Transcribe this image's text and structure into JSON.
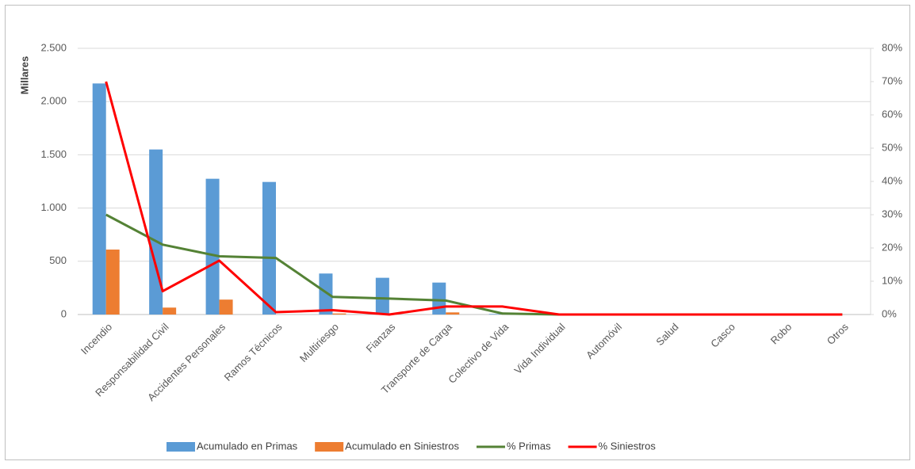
{
  "chart_data": {
    "type": "bar_line",
    "y_label": "Millares",
    "categories": [
      "Incendio",
      "Responsabilidad Civil",
      "Accidentes Personales",
      "Ramos Técnicos",
      "Multiriesgo",
      "Fianzas",
      "Transporte de Carga",
      "Colectivo de Vida",
      "Vida Individual",
      "Automóvil",
      "Salud",
      "Casco",
      "Robo",
      "Otros"
    ],
    "series": [
      {
        "name": "Acumulado en Primas",
        "color": "#5b9bd5",
        "kind": "bar",
        "values": [
          2170,
          1550,
          1275,
          1245,
          385,
          345,
          300,
          5,
          0,
          0,
          0,
          0,
          0,
          0
        ]
      },
      {
        "name": "Acumulado en Siniestros",
        "color": "#ed7d31",
        "kind": "bar",
        "values": [
          610,
          65,
          140,
          0,
          10,
          0,
          20,
          0,
          0,
          0,
          0,
          0,
          0,
          0
        ]
      },
      {
        "name": "% Primas",
        "color": "#548235",
        "kind": "line",
        "axis": "y2",
        "values": [
          30,
          21,
          17.5,
          17,
          5.3,
          4.8,
          4.2,
          0.3,
          0,
          0,
          0,
          0,
          0,
          0
        ]
      },
      {
        "name": "% Siniestros",
        "color": "#ff0000",
        "kind": "line",
        "axis": "y2",
        "values": [
          70,
          7,
          16.2,
          0.7,
          1.3,
          0,
          2.4,
          2.4,
          0,
          0,
          0,
          0,
          0,
          0
        ]
      }
    ],
    "ylim": [
      0,
      2500
    ],
    "yticks": [
      0,
      500,
      {
        "value": 1000,
        "label": "1.000"
      },
      {
        "value": 1500,
        "label": "1.500"
      },
      {
        "value": 2000,
        "label": "2.000"
      },
      {
        "value": 2500,
        "label": "2.500"
      }
    ],
    "y2lim": [
      0,
      80
    ],
    "y2ticks": [
      {
        "value": 0,
        "label": "0%"
      },
      {
        "value": 10,
        "label": "10%"
      },
      {
        "value": 20,
        "label": "20%"
      },
      {
        "value": 30,
        "label": "30%"
      },
      {
        "value": 40,
        "label": "40%"
      },
      {
        "value": 50,
        "label": "50%"
      },
      {
        "value": 60,
        "label": "60%"
      },
      {
        "value": 70,
        "label": "70%"
      },
      {
        "value": 80,
        "label": "80%"
      }
    ],
    "grid": true,
    "legend": "bottom"
  }
}
